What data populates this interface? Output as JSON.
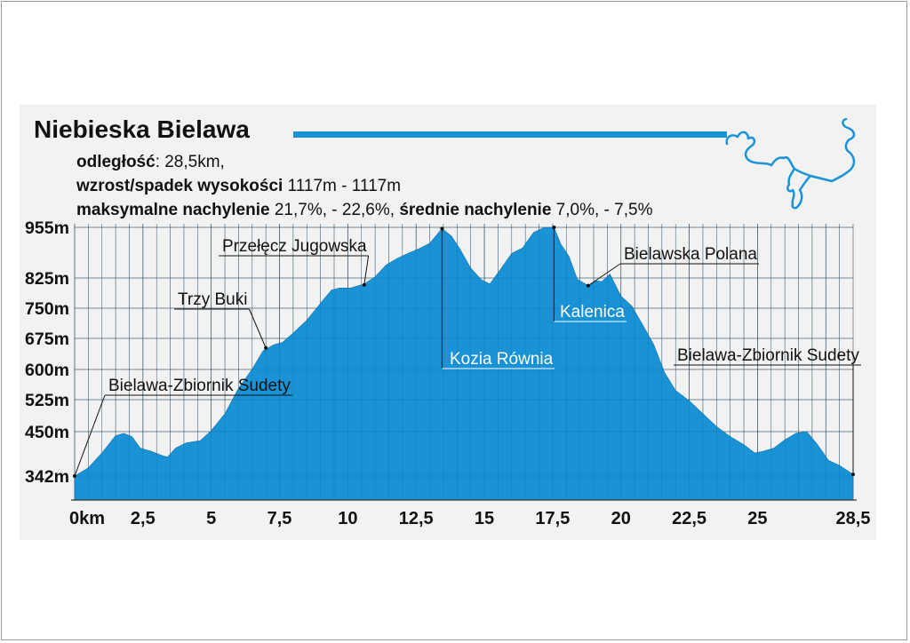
{
  "header": {
    "title": "Niebieska Bielawa",
    "distance_label": "odległość",
    "distance_value": ": 28,5km,",
    "elevation_label": "wzrost/spadek wysokości",
    "elevation_value": " 1117m - 1117m",
    "max_slope_label": "maksymalne nachylenie",
    "max_slope_value": " 21,7%, - 22,6%, ",
    "avg_slope_label": "średnie nachylenie",
    "avg_slope_value": " 7,0%, - 7,5%"
  },
  "colors": {
    "accent": "#1a93d6",
    "fill": "#1a93d6",
    "route": "#1a93d6",
    "poi_highlight": "#ffffff"
  },
  "chart_data": {
    "type": "area",
    "title": "Niebieska Bielawa",
    "xlabel": "",
    "ylabel": "",
    "grid": true,
    "xlim": [
      0,
      28.5
    ],
    "ylim": [
      342,
      955
    ],
    "x_ticks": [
      {
        "value": 0,
        "label": "0km"
      },
      {
        "value": 2.5,
        "label": "2,5"
      },
      {
        "value": 5,
        "label": "5"
      },
      {
        "value": 7.5,
        "label": "7,5"
      },
      {
        "value": 10,
        "label": "10"
      },
      {
        "value": 12.5,
        "label": "12,5"
      },
      {
        "value": 15,
        "label": "15"
      },
      {
        "value": 17.5,
        "label": "17,5"
      },
      {
        "value": 20,
        "label": "20"
      },
      {
        "value": 22.5,
        "label": "22,5"
      },
      {
        "value": 25,
        "label": "25"
      },
      {
        "value": 28.5,
        "label": "28,5"
      }
    ],
    "y_ticks": [
      {
        "value": 955,
        "label": "955m"
      },
      {
        "value": 825,
        "label": "825m"
      },
      {
        "value": 750,
        "label": "750m"
      },
      {
        "value": 675,
        "label": "675m"
      },
      {
        "value": 600,
        "label": "600m"
      },
      {
        "value": 525,
        "label": "525m"
      },
      {
        "value": 450,
        "label": "450m"
      },
      {
        "value": 342,
        "label": "342m"
      }
    ],
    "x": [
      0,
      0.5,
      1.0,
      1.5,
      1.8,
      2.1,
      2.4,
      2.8,
      3.2,
      3.4,
      3.7,
      4.1,
      4.6,
      5.0,
      5.5,
      6.0,
      6.5,
      6.9,
      7.3,
      7.6,
      8.0,
      8.5,
      9.0,
      9.4,
      9.7,
      10.1,
      10.6,
      11.0,
      11.4,
      11.8,
      12.2,
      12.6,
      13.0,
      13.45,
      13.8,
      14.1,
      14.5,
      14.9,
      15.2,
      15.6,
      16.0,
      16.4,
      16.8,
      17.2,
      17.55,
      17.8,
      18.1,
      18.4,
      18.8,
      19.1,
      19.3,
      19.6,
      20.0,
      20.4,
      20.8,
      21.2,
      21.6,
      22.0,
      22.5,
      23.0,
      23.5,
      24.0,
      24.5,
      24.9,
      25.2,
      25.6,
      26.0,
      26.4,
      26.8,
      27.2,
      27.6,
      28.0,
      28.5
    ],
    "values": [
      342,
      362,
      398,
      440,
      446,
      438,
      410,
      402,
      392,
      388,
      410,
      423,
      428,
      452,
      492,
      553,
      601,
      645,
      660,
      665,
      688,
      720,
      762,
      795,
      800,
      800,
      810,
      828,
      858,
      875,
      888,
      900,
      914,
      952,
      932,
      900,
      850,
      820,
      810,
      848,
      888,
      902,
      942,
      955,
      955,
      912,
      880,
      822,
      806,
      818,
      816,
      835,
      780,
      755,
      708,
      660,
      592,
      548,
      522,
      492,
      462,
      438,
      418,
      398,
      402,
      410,
      430,
      446,
      450,
      418,
      380,
      368,
      346
    ],
    "annotations": [
      {
        "text": "Bielawa-Zbiornik Sudety",
        "x": 0,
        "y": 342
      },
      {
        "text": "Trzy Buki",
        "x": 7.0,
        "y": 652
      },
      {
        "text": "Przełęcz Jugowska",
        "x": 10.6,
        "y": 808
      },
      {
        "text": "Kozia Równia",
        "x": 13.45,
        "y": 952
      },
      {
        "text": "Kalenica",
        "x": 17.55,
        "y": 955
      },
      {
        "text": "Bielawska Polana",
        "x": 18.8,
        "y": 806
      },
      {
        "text": "Bielawa-Zbiornik Sudety",
        "x": 28.5,
        "y": 346
      }
    ]
  }
}
